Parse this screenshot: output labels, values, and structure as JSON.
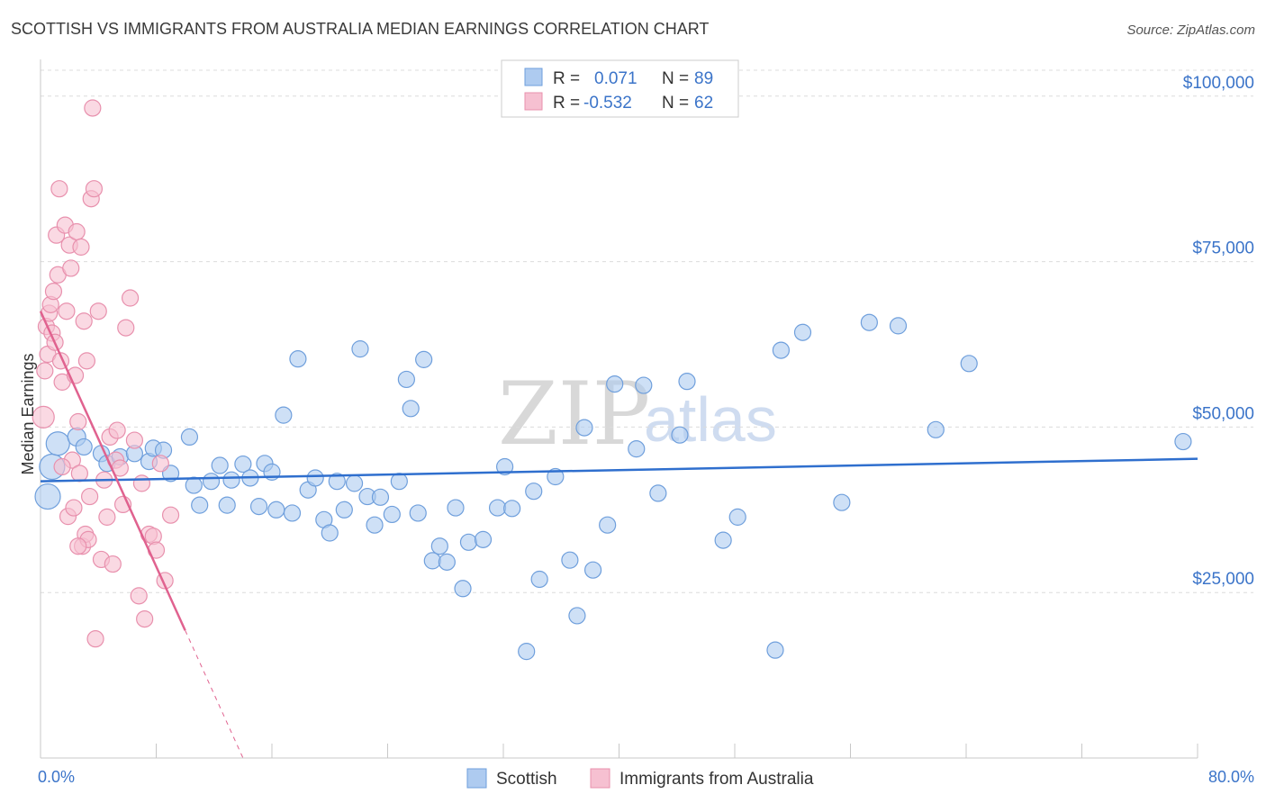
{
  "title": "SCOTTISH VS IMMIGRANTS FROM AUSTRALIA MEDIAN EARNINGS CORRELATION CHART",
  "source": "Source: ZipAtlas.com",
  "watermark": {
    "zip": "ZIP",
    "atlas": "atlas"
  },
  "colors": {
    "scottish_fill": "#aecbf0",
    "scottish_stroke": "#6f9fdc",
    "scottish_line": "#2f6fce",
    "australia_fill": "#f6c0d1",
    "australia_stroke": "#e890ad",
    "australia_line": "#e0628f",
    "grid": "#dcdcdc",
    "tick_label": "#3b74c9"
  },
  "legend": {
    "rows": [
      {
        "r_label": "R =",
        "r_value": "0.071",
        "n_label": "N =",
        "n_value": "89"
      },
      {
        "r_label": "R =",
        "r_value": "-0.532",
        "n_label": "N =",
        "n_value": "62"
      }
    ]
  },
  "chart_data": {
    "type": "scatter",
    "title": "SCOTTISH VS IMMIGRANTS FROM AUSTRALIA MEDIAN EARNINGS CORRELATION CHART",
    "xlabel": "",
    "ylabel": "Median Earnings",
    "xlim": [
      0,
      80
    ],
    "ylim": [
      0,
      105000
    ],
    "x_tick_labels": [
      "0.0%",
      "80.0%"
    ],
    "y_ticks": [
      25000,
      50000,
      75000,
      100000
    ],
    "y_tick_labels": [
      "$25,000",
      "$50,000",
      "$75,000",
      "$100,000"
    ],
    "legend_position": "top-center",
    "series": [
      {
        "name": "Scottish",
        "r": 0.071,
        "n": 89,
        "trend": {
          "x0": 0,
          "y0": 41800,
          "x1": 80,
          "y1": 45200,
          "dashed_from_x": null
        },
        "points": [
          [
            0.5,
            39500,
            14
          ],
          [
            0.8,
            44000,
            14
          ],
          [
            1.2,
            47500,
            13
          ],
          [
            2.5,
            48500,
            10
          ],
          [
            3.0,
            47000,
            9
          ],
          [
            4.2,
            46000,
            9
          ],
          [
            4.6,
            44500,
            9
          ],
          [
            5.5,
            45500,
            9
          ],
          [
            6.5,
            46000,
            9
          ],
          [
            7.5,
            44800,
            9
          ],
          [
            7.8,
            46800,
            9
          ],
          [
            8.5,
            46500,
            9
          ],
          [
            9.0,
            43000,
            9
          ],
          [
            10.3,
            48500,
            9
          ],
          [
            10.6,
            41200,
            9
          ],
          [
            11.0,
            38200,
            9
          ],
          [
            11.8,
            41800,
            9
          ],
          [
            12.4,
            44200,
            9
          ],
          [
            12.9,
            38200,
            9
          ],
          [
            13.2,
            42000,
            9
          ],
          [
            14.0,
            44400,
            9
          ],
          [
            14.5,
            42300,
            9
          ],
          [
            15.1,
            38000,
            9
          ],
          [
            15.5,
            44500,
            9
          ],
          [
            16.0,
            43200,
            9
          ],
          [
            16.3,
            37500,
            9
          ],
          [
            16.8,
            51800,
            9
          ],
          [
            17.4,
            37000,
            9
          ],
          [
            17.8,
            60300,
            9
          ],
          [
            18.5,
            40500,
            9
          ],
          [
            19.0,
            42300,
            9
          ],
          [
            19.6,
            36000,
            9
          ],
          [
            20.0,
            34000,
            9
          ],
          [
            20.5,
            41800,
            9
          ],
          [
            21.0,
            37500,
            9
          ],
          [
            21.7,
            41500,
            9
          ],
          [
            22.1,
            61800,
            9
          ],
          [
            22.6,
            39500,
            9
          ],
          [
            23.1,
            35200,
            9
          ],
          [
            23.5,
            39400,
            9
          ],
          [
            24.3,
            36800,
            9
          ],
          [
            24.8,
            41800,
            9
          ],
          [
            25.3,
            57200,
            9
          ],
          [
            25.6,
            52800,
            9
          ],
          [
            26.1,
            37000,
            9
          ],
          [
            26.5,
            60200,
            9
          ],
          [
            27.1,
            29800,
            9
          ],
          [
            27.6,
            32000,
            9
          ],
          [
            28.1,
            29600,
            9
          ],
          [
            28.7,
            37800,
            9
          ],
          [
            29.2,
            25600,
            9
          ],
          [
            29.6,
            32600,
            9
          ],
          [
            30.6,
            33000,
            9
          ],
          [
            31.6,
            37800,
            9
          ],
          [
            32.1,
            44000,
            9
          ],
          [
            32.6,
            37700,
            9
          ],
          [
            33.6,
            16100,
            9
          ],
          [
            34.1,
            40300,
            9
          ],
          [
            34.5,
            27000,
            9
          ],
          [
            35.6,
            42500,
            9
          ],
          [
            36.6,
            29900,
            9
          ],
          [
            37.1,
            21500,
            9
          ],
          [
            37.6,
            49900,
            9
          ],
          [
            38.2,
            28400,
            9
          ],
          [
            39.2,
            35200,
            9
          ],
          [
            39.7,
            56500,
            9
          ],
          [
            41.2,
            46700,
            9
          ],
          [
            41.7,
            56300,
            9
          ],
          [
            42.7,
            40000,
            9
          ],
          [
            44.2,
            48800,
            9
          ],
          [
            44.7,
            56900,
            9
          ],
          [
            47.2,
            32900,
            9
          ],
          [
            48.2,
            36400,
            9
          ],
          [
            50.8,
            16300,
            9
          ],
          [
            51.2,
            61600,
            9
          ],
          [
            52.7,
            64300,
            9
          ],
          [
            55.4,
            38600,
            9
          ],
          [
            57.3,
            65800,
            9
          ],
          [
            59.3,
            65300,
            9
          ],
          [
            61.9,
            49600,
            9
          ],
          [
            64.2,
            59600,
            9
          ],
          [
            79.0,
            47800,
            9
          ]
        ]
      },
      {
        "name": "Immigrants from Australia",
        "r": -0.532,
        "n": 62,
        "trend": {
          "x0": 0,
          "y0": 67500,
          "x1": 14,
          "y1": 0,
          "dashed_from_x": 10.0
        },
        "points": [
          [
            0.2,
            51500,
            12
          ],
          [
            0.3,
            58500,
            9
          ],
          [
            0.4,
            65200,
            9
          ],
          [
            0.5,
            61000,
            9
          ],
          [
            0.6,
            67200,
            9
          ],
          [
            0.7,
            68500,
            9
          ],
          [
            0.8,
            64200,
            9
          ],
          [
            0.9,
            70500,
            9
          ],
          [
            1.0,
            62800,
            9
          ],
          [
            1.1,
            79000,
            9
          ],
          [
            1.2,
            73000,
            9
          ],
          [
            1.3,
            86000,
            9
          ],
          [
            1.4,
            60000,
            9
          ],
          [
            1.5,
            56800,
            9
          ],
          [
            1.7,
            80500,
            9
          ],
          [
            1.8,
            67500,
            9
          ],
          [
            1.9,
            36500,
            9
          ],
          [
            2.0,
            77500,
            9
          ],
          [
            2.1,
            74000,
            9
          ],
          [
            2.2,
            45000,
            9
          ],
          [
            2.3,
            37800,
            9
          ],
          [
            2.4,
            57800,
            9
          ],
          [
            2.5,
            79500,
            9
          ],
          [
            2.6,
            50800,
            9
          ],
          [
            2.7,
            43000,
            9
          ],
          [
            2.8,
            77200,
            9
          ],
          [
            2.9,
            32000,
            9
          ],
          [
            3.0,
            66000,
            9
          ],
          [
            3.1,
            33800,
            9
          ],
          [
            3.2,
            60000,
            9
          ],
          [
            3.3,
            33000,
            9
          ],
          [
            3.4,
            39500,
            9
          ],
          [
            3.5,
            84500,
            9
          ],
          [
            3.6,
            98200,
            9
          ],
          [
            3.7,
            86000,
            9
          ],
          [
            3.8,
            18000,
            9
          ],
          [
            4.0,
            67500,
            9
          ],
          [
            4.2,
            30000,
            9
          ],
          [
            4.4,
            42000,
            9
          ],
          [
            4.6,
            36400,
            9
          ],
          [
            4.8,
            48500,
            9
          ],
          [
            5.0,
            29300,
            9
          ],
          [
            5.2,
            45000,
            9
          ],
          [
            5.3,
            49500,
            9
          ],
          [
            5.5,
            43800,
            9
          ],
          [
            5.7,
            38300,
            9
          ],
          [
            5.9,
            65000,
            9
          ],
          [
            6.2,
            69500,
            9
          ],
          [
            6.5,
            48000,
            9
          ],
          [
            6.8,
            24500,
            9
          ],
          [
            7.0,
            41500,
            9
          ],
          [
            7.2,
            21000,
            9
          ],
          [
            7.5,
            33800,
            9
          ],
          [
            7.8,
            33500,
            9
          ],
          [
            8.0,
            31400,
            9
          ],
          [
            8.3,
            44500,
            9
          ],
          [
            8.6,
            26800,
            9
          ],
          [
            9.0,
            36700,
            9
          ],
          [
            2.6,
            32000,
            9
          ],
          [
            1.5,
            44000,
            9
          ]
        ]
      }
    ]
  },
  "bottom_legend": {
    "items": [
      {
        "label": "Scottish"
      },
      {
        "label": "Immigrants from Australia"
      }
    ]
  }
}
